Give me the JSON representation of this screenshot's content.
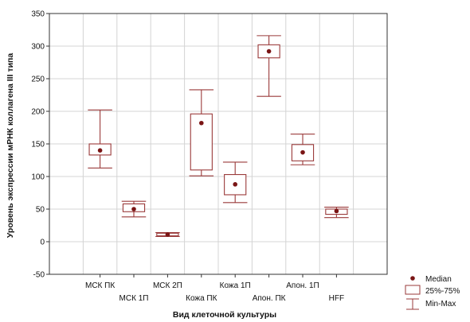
{
  "chart_data": {
    "type": "box",
    "xlabel": "Вид клеточной культуры",
    "ylabel": "Уровень экспрессии мРНК коллагена III типа",
    "ylim": [
      -50,
      350
    ],
    "yticks": [
      -50,
      0,
      50,
      100,
      150,
      200,
      250,
      300,
      350
    ],
    "grid": true,
    "legend": {
      "placement": "bottom-right",
      "entries": [
        {
          "symbol": "dot",
          "label": "Median"
        },
        {
          "symbol": "box",
          "label": "25%-75%"
        },
        {
          "symbol": "whisker",
          "label": "Min-Max"
        }
      ]
    },
    "colors": {
      "box": "#9a3a3a",
      "median": "#7a1515",
      "grid": "#d4d4d4"
    },
    "categories": [
      "МСК ПК",
      "МСК 1П",
      "МСК 2П",
      "Кожа ПК",
      "Кожа 1П",
      "Апон. ПК",
      "Апон. 1П",
      "HFF"
    ],
    "label_row": [
      0,
      1,
      0,
      1,
      0,
      1,
      0,
      1
    ],
    "boxes": [
      {
        "min": 113,
        "q1": 133,
        "median": 140,
        "q3": 150,
        "max": 202
      },
      {
        "min": 38,
        "q1": 46,
        "median": 50,
        "q3": 58,
        "max": 62
      },
      {
        "min": 8,
        "q1": 9,
        "median": 11,
        "q3": 13,
        "max": 14
      },
      {
        "min": 101,
        "q1": 110,
        "median": 182,
        "q3": 196,
        "max": 233
      },
      {
        "min": 60,
        "q1": 72,
        "median": 88,
        "q3": 103,
        "max": 122
      },
      {
        "min": 223,
        "q1": 282,
        "median": 292,
        "q3": 302,
        "max": 316
      },
      {
        "min": 118,
        "q1": 124,
        "median": 137,
        "q3": 149,
        "max": 165
      },
      {
        "min": 37,
        "q1": 42,
        "median": 47,
        "q3": 50,
        "max": 53
      }
    ]
  }
}
